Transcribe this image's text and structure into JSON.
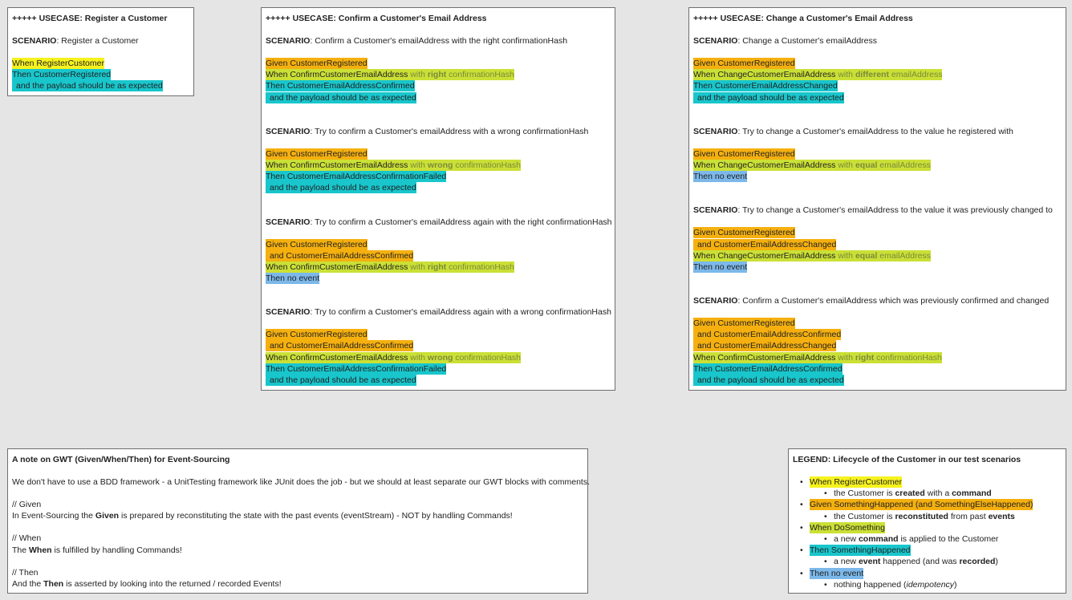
{
  "colors": {
    "given": "#f5b00f",
    "when_command": "#cbe036",
    "when_register": "#f6f21e",
    "then_event": "#18c6cc",
    "then_no_event": "#7cb8ea",
    "background": "#e5e5e5"
  },
  "usecases": [
    {
      "title": "+++++ USECASE: Register a Customer",
      "scenarios": [
        {
          "label": "SCENARIO",
          "text": ": Register a Customer",
          "lines": [
            {
              "type": "when_register",
              "indent": false,
              "text": " When RegisterCustomer",
              "mod": "",
              "mod_bold": "",
              "mod_tail": ""
            },
            {
              "type": "then",
              "indent": false,
              "text": " Then CustomerRegistered",
              "mod": "",
              "mod_bold": "",
              "mod_tail": ""
            },
            {
              "type": "then",
              "indent": true,
              "text": " and the payload should be as expected",
              "mod": "",
              "mod_bold": "",
              "mod_tail": ""
            }
          ]
        }
      ]
    },
    {
      "title": "+++++ USECASE: Confirm a Customer's Email Address",
      "scenarios": [
        {
          "label": "SCENARIO",
          "text": ": Confirm a Customer's emailAddress with the right confirmationHash",
          "lines": [
            {
              "type": "given",
              "indent": false,
              "text": " Given CustomerRegistered",
              "mod": "",
              "mod_bold": "",
              "mod_tail": ""
            },
            {
              "type": "when",
              "indent": false,
              "text": " When ConfirmCustomerEmailAddress",
              "mod": " with ",
              "mod_bold": "right",
              "mod_tail": " confirmationHash"
            },
            {
              "type": "then",
              "indent": false,
              "text": " Then CustomerEmailAddressConfirmed",
              "mod": "",
              "mod_bold": "",
              "mod_tail": ""
            },
            {
              "type": "then",
              "indent": true,
              "text": " and the payload should be as expected",
              "mod": "",
              "mod_bold": "",
              "mod_tail": ""
            }
          ]
        },
        {
          "label": "SCENARIO",
          "text": ": Try to confirm a Customer's emailAddress with a wrong confirmationHash",
          "lines": [
            {
              "type": "given",
              "indent": false,
              "text": " Given CustomerRegistered",
              "mod": "",
              "mod_bold": "",
              "mod_tail": ""
            },
            {
              "type": "when",
              "indent": false,
              "text": " When ConfirmCustomerEmailAddress",
              "mod": " with ",
              "mod_bold": "wrong",
              "mod_tail": " confirmationHash"
            },
            {
              "type": "then",
              "indent": false,
              "text": " Then CustomerEmailAddressConfirmationFailed",
              "mod": "",
              "mod_bold": "",
              "mod_tail": ""
            },
            {
              "type": "then",
              "indent": true,
              "text": " and the payload should be as expected",
              "mod": "",
              "mod_bold": "",
              "mod_tail": ""
            }
          ]
        },
        {
          "label": "SCENARIO",
          "text": ": Try to confirm a Customer's emailAddress again with the right confirmationHash",
          "lines": [
            {
              "type": "given",
              "indent": false,
              "text": " Given CustomerRegistered",
              "mod": "",
              "mod_bold": "",
              "mod_tail": ""
            },
            {
              "type": "given",
              "indent": true,
              "text": " and CustomerEmailAddressConfirmed",
              "mod": "",
              "mod_bold": "",
              "mod_tail": ""
            },
            {
              "type": "when",
              "indent": false,
              "text": " When ConfirmCustomerEmailAddress",
              "mod": " with ",
              "mod_bold": "right",
              "mod_tail": " confirmationHash"
            },
            {
              "type": "none",
              "indent": false,
              "text": " Then no event",
              "mod": "",
              "mod_bold": "",
              "mod_tail": ""
            }
          ]
        },
        {
          "label": "SCENARIO",
          "text": ": Try to confirm a Customer's emailAddress again with a wrong confirmationHash",
          "lines": [
            {
              "type": "given",
              "indent": false,
              "text": " Given CustomerRegistered",
              "mod": "",
              "mod_bold": "",
              "mod_tail": ""
            },
            {
              "type": "given",
              "indent": true,
              "text": " and CustomerEmailAddressConfirmed",
              "mod": "",
              "mod_bold": "",
              "mod_tail": ""
            },
            {
              "type": "when",
              "indent": false,
              "text": " When ConfirmCustomerEmailAddress",
              "mod": " with ",
              "mod_bold": "wrong",
              "mod_tail": " confirmationHash"
            },
            {
              "type": "then",
              "indent": false,
              "text": " Then CustomerEmailAddressConfirmationFailed",
              "mod": "",
              "mod_bold": "",
              "mod_tail": ""
            },
            {
              "type": "then",
              "indent": true,
              "text": " and the payload should be as expected",
              "mod": "",
              "mod_bold": "",
              "mod_tail": ""
            }
          ]
        }
      ]
    },
    {
      "title": "+++++ USECASE: Change a Customer's Email Address",
      "scenarios": [
        {
          "label": "SCENARIO",
          "text": ": Change a Customer's emailAddress",
          "lines": [
            {
              "type": "given",
              "indent": false,
              "text": " Given CustomerRegistered",
              "mod": "",
              "mod_bold": "",
              "mod_tail": ""
            },
            {
              "type": "when",
              "indent": false,
              "text": " When ChangeCustomerEmailAddress",
              "mod": " with ",
              "mod_bold": "different",
              "mod_tail": " emailAddress"
            },
            {
              "type": "then",
              "indent": false,
              "text": " Then CustomerEmailAddressChanged",
              "mod": "",
              "mod_bold": "",
              "mod_tail": ""
            },
            {
              "type": "then",
              "indent": true,
              "text": " and the payload should be as expected",
              "mod": "",
              "mod_bold": "",
              "mod_tail": ""
            }
          ]
        },
        {
          "label": "SCENARIO",
          "text": ": Try to change a Customer's emailAddress to the value he registered with",
          "lines": [
            {
              "type": "given",
              "indent": false,
              "text": " Given CustomerRegistered",
              "mod": "",
              "mod_bold": "",
              "mod_tail": ""
            },
            {
              "type": "when",
              "indent": false,
              "text": " When ChangeCustomerEmailAddress",
              "mod": " with ",
              "mod_bold": "equal",
              "mod_tail": " emailAddress"
            },
            {
              "type": "none",
              "indent": false,
              "text": " Then no event",
              "mod": "",
              "mod_bold": "",
              "mod_tail": ""
            }
          ]
        },
        {
          "label": "SCENARIO",
          "text": ": Try to change a Customer's emailAddress to the value it was previously changed to",
          "lines": [
            {
              "type": "given",
              "indent": false,
              "text": " Given CustomerRegistered",
              "mod": "",
              "mod_bold": "",
              "mod_tail": ""
            },
            {
              "type": "given",
              "indent": true,
              "text": " and CustomerEmailAddressChanged",
              "mod": "",
              "mod_bold": "",
              "mod_tail": ""
            },
            {
              "type": "when",
              "indent": false,
              "text": " When ChangeCustomerEmailAddress",
              "mod": " with ",
              "mod_bold": "equal",
              "mod_tail": " emailAddress"
            },
            {
              "type": "none",
              "indent": false,
              "text": " Then no event",
              "mod": "",
              "mod_bold": "",
              "mod_tail": ""
            }
          ]
        },
        {
          "label": "SCENARIO",
          "text": ": Confirm a Customer's emailAddress which was previously confirmed and changed",
          "lines": [
            {
              "type": "given",
              "indent": false,
              "text": " Given CustomerRegistered",
              "mod": "",
              "mod_bold": "",
              "mod_tail": ""
            },
            {
              "type": "given",
              "indent": true,
              "text": " and CustomerEmailAddressConfirmed",
              "mod": "",
              "mod_bold": "",
              "mod_tail": ""
            },
            {
              "type": "given",
              "indent": true,
              "text": " and CustomerEmailAddressChanged",
              "mod": "",
              "mod_bold": "",
              "mod_tail": ""
            },
            {
              "type": "when",
              "indent": false,
              "text": " When ConfirmCustomerEmailAddress",
              "mod": " with ",
              "mod_bold": "right",
              "mod_tail": " confirmationHash"
            },
            {
              "type": "then",
              "indent": false,
              "text": " Then CustomerEmailAddressConfirmed",
              "mod": "",
              "mod_bold": "",
              "mod_tail": ""
            },
            {
              "type": "then",
              "indent": true,
              "text": " and the payload should be as expected",
              "mod": "",
              "mod_bold": "",
              "mod_tail": ""
            }
          ]
        }
      ]
    }
  ],
  "note": {
    "title": "A note on GWT (Given/When/Then) for Event-Sourcing",
    "intro": "We don't have to use a BDD framework - a UnitTesting framework like JUnit does the job - but we should at least separate our GWT blocks with comments.",
    "given_comment": "// Given",
    "given_pre": "In Event-Sourcing the ",
    "given_bold": "Given",
    "given_post": " is prepared by reconstituting the state with the past events (eventStream) - NOT by handling Commands!",
    "when_comment": "// When",
    "when_pre": "The ",
    "when_bold": "When",
    "when_post": " is fulfilled by handling Commands!",
    "then_comment": "// Then",
    "then_pre": "And the ",
    "then_bold": "Then",
    "then_post": " is asserted by looking into the returned / recorded Events!"
  },
  "legend": {
    "title": "LEGEND: Lifecycle of the Customer in our test scenarios",
    "items": [
      {
        "hl": " When RegisterCustomer",
        "sub_pre": "the Customer is ",
        "sub_b1": "created",
        "sub_mid": " with a ",
        "sub_b2": "command",
        "sub_post": ""
      },
      {
        "hl": "Given SomethingHappened (and SomethingElseHappened)",
        "sub_pre": "the Customer is ",
        "sub_b1": "reconstituted",
        "sub_mid": " from past ",
        "sub_b2": "events",
        "sub_post": ""
      },
      {
        "hl": "When DoSomething",
        "sub_pre": "a new ",
        "sub_b1": "command",
        "sub_mid": " is applied to the Customer",
        "sub_b2": "",
        "sub_post": ""
      },
      {
        "hl": "Then SomethingHappened",
        "sub_pre": "a new ",
        "sub_b1": "event",
        "sub_mid": " happened (and was ",
        "sub_b2": "recorded",
        "sub_post": ")"
      },
      {
        "hl": "Then no event",
        "sub_pre": "nothing happened (",
        "sub_i": "idempotency",
        "sub_post": ")"
      }
    ]
  }
}
